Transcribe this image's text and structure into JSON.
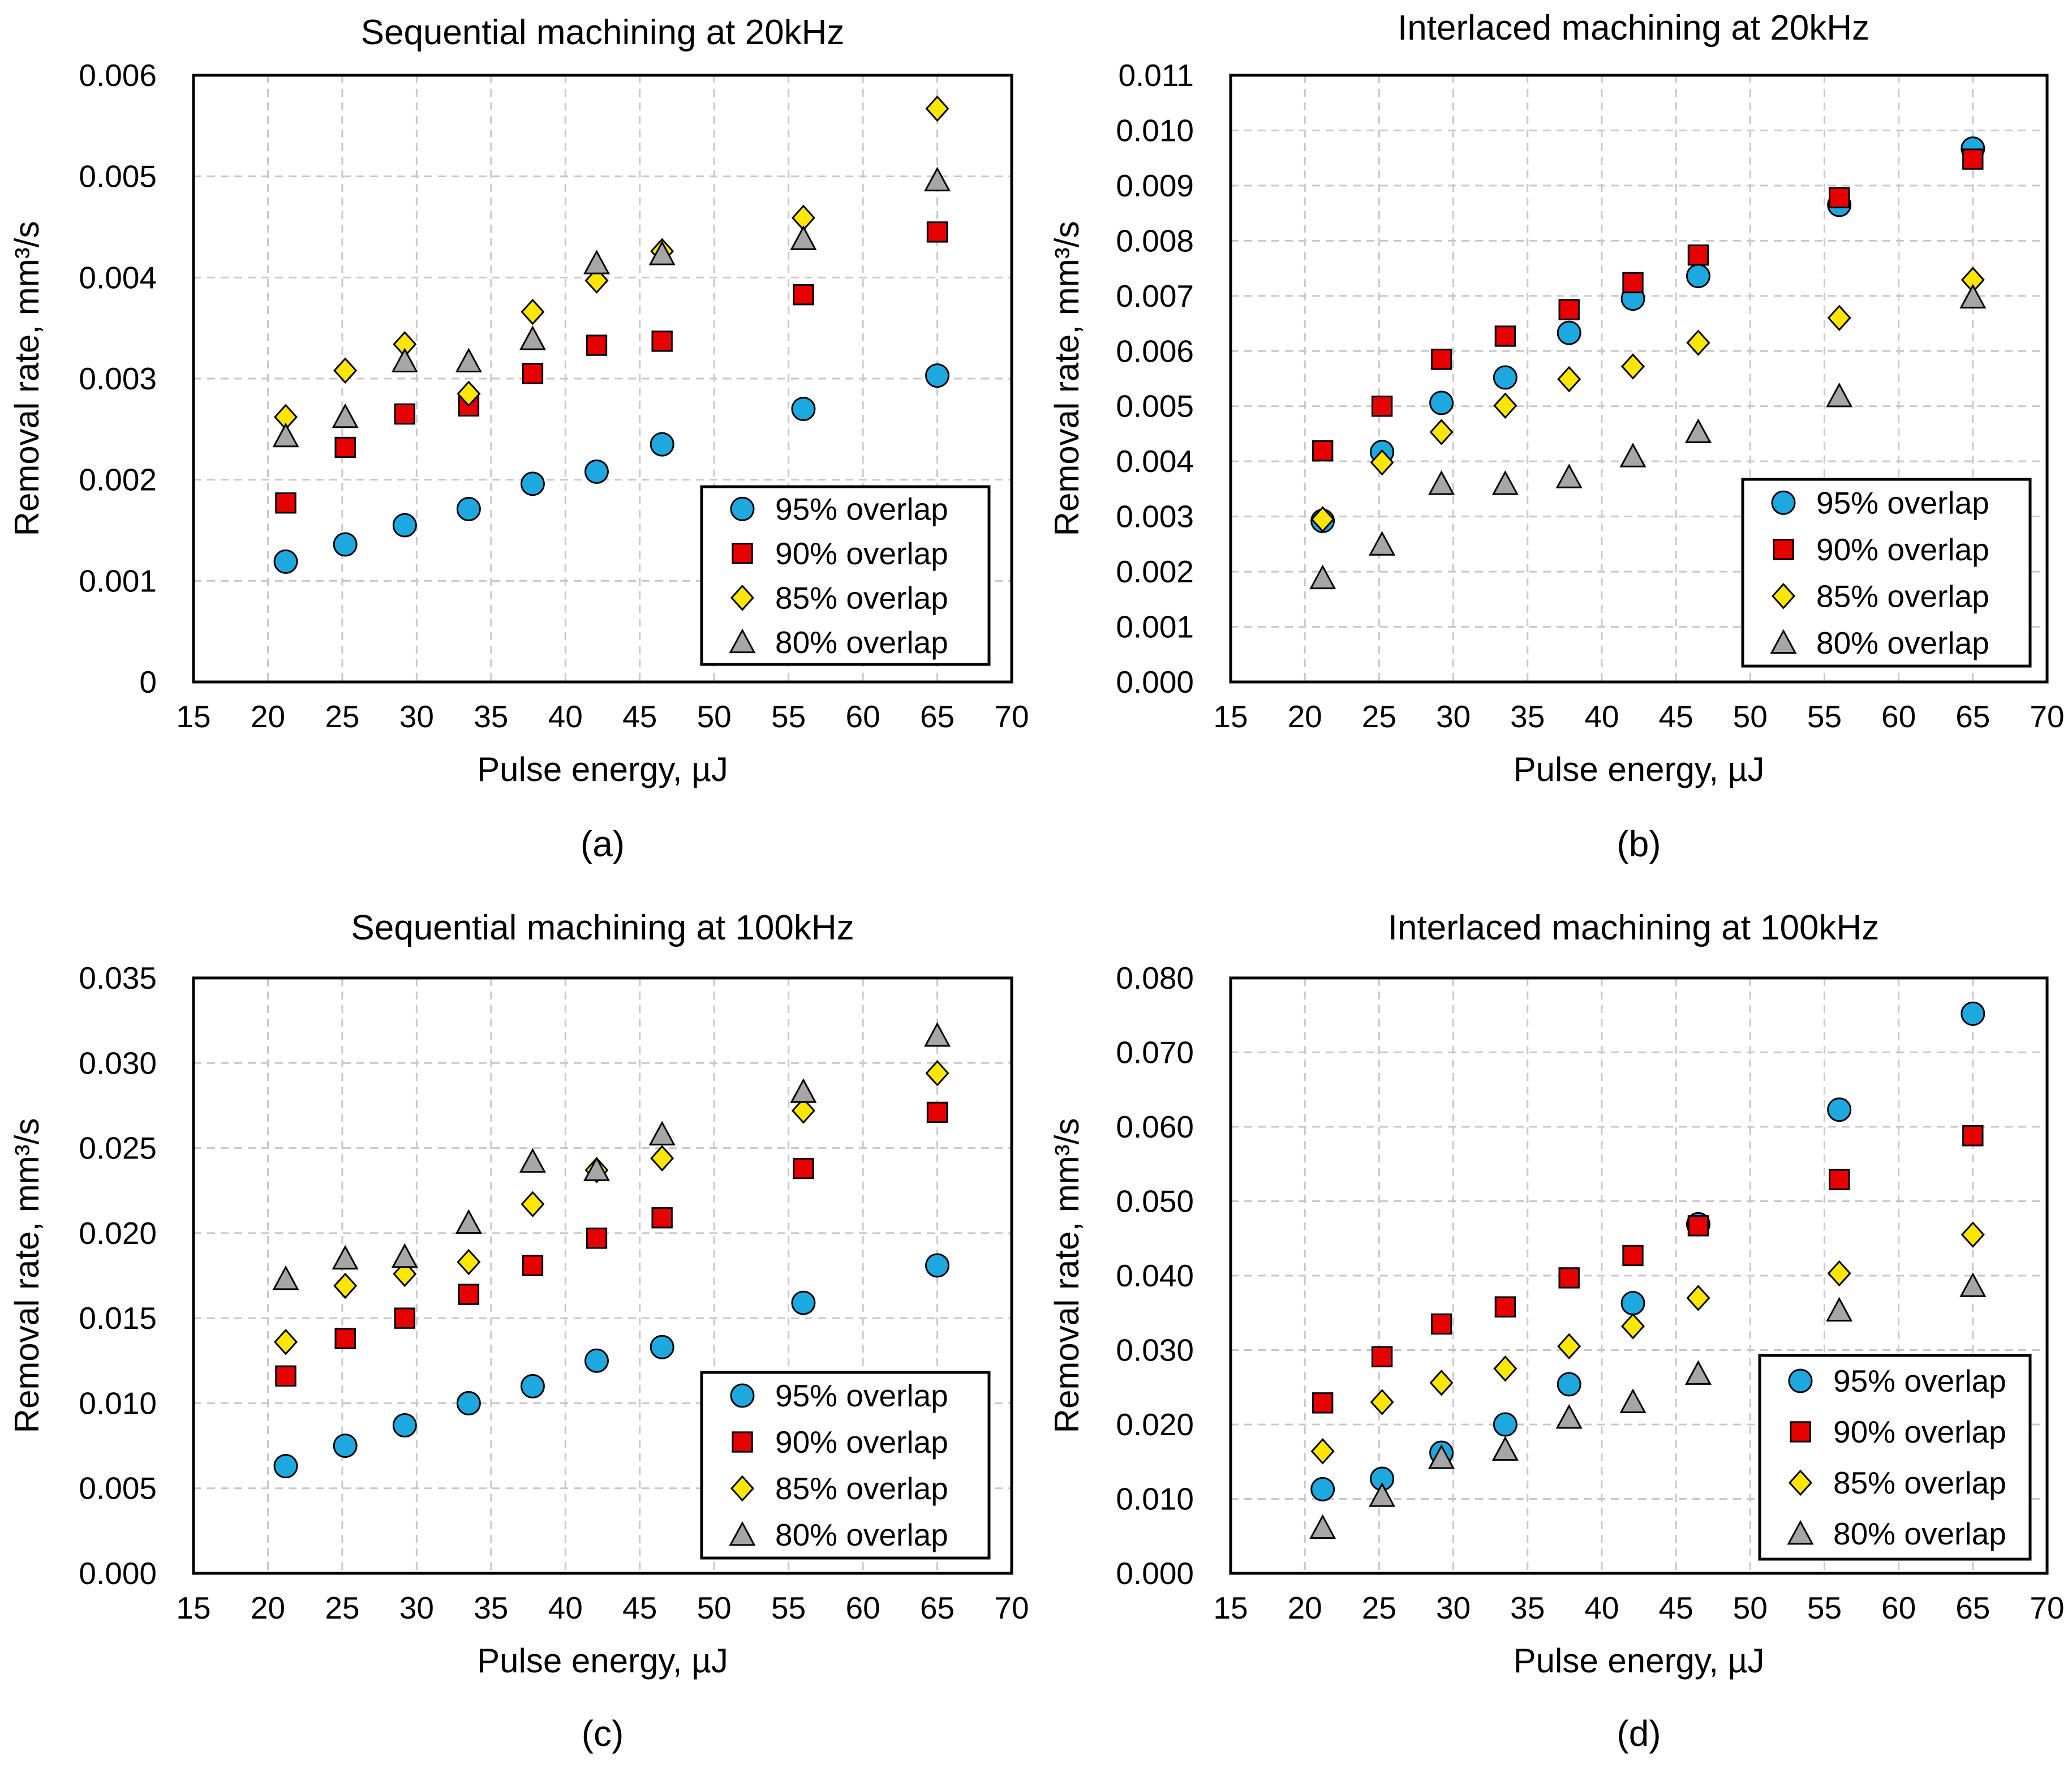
{
  "series_styles": [
    {
      "name": "95% overlap",
      "marker": "circle",
      "color": "#1ea8e0"
    },
    {
      "name": "90% overlap",
      "marker": "square",
      "color": "#e60000"
    },
    {
      "name": "85% overlap",
      "marker": "diamond",
      "color": "#ffe600"
    },
    {
      "name": "80% overlap",
      "marker": "triangle",
      "color": "#a6a6a6"
    }
  ],
  "chart_data": [
    {
      "type": "scatter",
      "caption": "(a)",
      "title": "Sequential machining at 20kHz",
      "xlabel": "Pulse energy, µJ",
      "ylabel": "Removal rate, mm³/s",
      "xlim": [
        15,
        70
      ],
      "xticks": [
        "15",
        "20",
        "25",
        "30",
        "35",
        "40",
        "45",
        "50",
        "55",
        "60",
        "65",
        "70"
      ],
      "ylim": [
        0,
        0.006
      ],
      "yticks": [
        "0",
        "0.001",
        "0.002",
        "0.003",
        "0.004",
        "0.005",
        "0.006"
      ],
      "grid": true,
      "legend_position": "bottom-right",
      "x": [
        21.2,
        25.2,
        29.2,
        33.5,
        37.8,
        42.1,
        46.5,
        56,
        65
      ],
      "series": [
        {
          "name": "95% overlap",
          "values": [
            0.00119,
            0.00136,
            0.00155,
            0.00171,
            0.00196,
            0.00208,
            0.00235,
            0.0027,
            0.00303
          ]
        },
        {
          "name": "90% overlap",
          "values": [
            0.00177,
            0.00232,
            0.00265,
            0.00273,
            0.00305,
            0.00333,
            0.00337,
            0.00383,
            0.00445
          ]
        },
        {
          "name": "85% overlap",
          "values": [
            0.00262,
            0.00308,
            0.00334,
            0.00285,
            0.00366,
            0.00397,
            0.00426,
            0.00459,
            0.00567
          ]
        },
        {
          "name": "80% overlap",
          "values": [
            0.00243,
            0.00262,
            0.00317,
            0.00317,
            0.00339,
            0.00414,
            0.00423,
            0.00438,
            0.00496
          ]
        }
      ]
    },
    {
      "type": "scatter",
      "caption": "(b)",
      "title": "Interlaced machining at 20kHz",
      "xlabel": "Pulse energy, µJ",
      "ylabel": "Removal rate, mm³/s",
      "xlim": [
        15,
        70
      ],
      "xticks": [
        "15",
        "20",
        "25",
        "30",
        "35",
        "40",
        "45",
        "50",
        "55",
        "60",
        "65",
        "70"
      ],
      "ylim": [
        0,
        0.011
      ],
      "yticks": [
        "0.000",
        "0.001",
        "0.002",
        "0.003",
        "0.004",
        "0.005",
        "0.006",
        "0.007",
        "0.008",
        "0.009",
        "0.010",
        "0.011"
      ],
      "grid": true,
      "legend_position": "bottom-right",
      "x": [
        21.2,
        25.2,
        29.2,
        33.5,
        37.8,
        42.1,
        46.5,
        56,
        65
      ],
      "series": [
        {
          "name": "95% overlap",
          "values": [
            0.00292,
            0.00417,
            0.00506,
            0.00552,
            0.00633,
            0.00695,
            0.00736,
            0.00865,
            0.00967
          ]
        },
        {
          "name": "90% overlap",
          "values": [
            0.00419,
            0.005,
            0.00585,
            0.00627,
            0.00675,
            0.00724,
            0.00774,
            0.00878,
            0.00948
          ]
        },
        {
          "name": "85% overlap",
          "values": [
            0.00295,
            0.00398,
            0.00453,
            0.00501,
            0.00549,
            0.00572,
            0.00615,
            0.0066,
            0.00729
          ]
        },
        {
          "name": "80% overlap",
          "values": [
            0.00188,
            0.00249,
            0.00359,
            0.00359,
            0.00371,
            0.00409,
            0.00453,
            0.00518,
            0.00697
          ]
        }
      ]
    },
    {
      "type": "scatter",
      "caption": "(c)",
      "title": "Sequential machining at 100kHz",
      "xlabel": "Pulse energy, µJ",
      "ylabel": "Removal rate, mm³/s",
      "xlim": [
        15,
        70
      ],
      "xticks": [
        "15",
        "20",
        "25",
        "30",
        "35",
        "40",
        "45",
        "50",
        "55",
        "60",
        "65",
        "70"
      ],
      "ylim": [
        0,
        0.035
      ],
      "yticks": [
        "0.000",
        "0.005",
        "0.010",
        "0.015",
        "0.020",
        "0.025",
        "0.030",
        "0.035"
      ],
      "grid": true,
      "legend_position": "bottom-right",
      "x": [
        21.2,
        25.2,
        29.2,
        33.5,
        37.8,
        42.1,
        46.5,
        56,
        65
      ],
      "series": [
        {
          "name": "95% overlap",
          "values": [
            0.0063,
            0.0075,
            0.0087,
            0.01,
            0.011,
            0.0125,
            0.0133,
            0.0159,
            0.0181
          ]
        },
        {
          "name": "90% overlap",
          "values": [
            0.0116,
            0.0138,
            0.015,
            0.0164,
            0.0181,
            0.0197,
            0.0209,
            0.0238,
            0.0271
          ]
        },
        {
          "name": "85% overlap",
          "values": [
            0.0136,
            0.0169,
            0.0176,
            0.0183,
            0.0217,
            0.0237,
            0.0244,
            0.0272,
            0.0294
          ]
        },
        {
          "name": "80% overlap",
          "values": [
            0.0173,
            0.0185,
            0.0186,
            0.0206,
            0.0242,
            0.0237,
            0.0258,
            0.0283,
            0.0316
          ]
        }
      ]
    },
    {
      "type": "scatter",
      "caption": "(d)",
      "title": "Interlaced machining at 100kHz",
      "xlabel": "Pulse energy, µJ",
      "ylabel": "Removal rate, mm³/s",
      "xlim": [
        15,
        70
      ],
      "xticks": [
        "15",
        "20",
        "25",
        "30",
        "35",
        "40",
        "45",
        "50",
        "55",
        "60",
        "65",
        "70"
      ],
      "ylim": [
        0,
        0.08
      ],
      "yticks": [
        "0.000",
        "0.010",
        "0.020",
        "0.030",
        "0.040",
        "0.050",
        "0.060",
        "0.070",
        "0.080"
      ],
      "grid": true,
      "legend_position": "bottom-right",
      "x": [
        21.2,
        25.2,
        29.2,
        33.5,
        37.8,
        42.1,
        46.5,
        56,
        65
      ],
      "series": [
        {
          "name": "95% overlap",
          "values": [
            0.0113,
            0.0127,
            0.0162,
            0.02,
            0.0254,
            0.0363,
            0.0469,
            0.0623,
            0.0752
          ]
        },
        {
          "name": "90% overlap",
          "values": [
            0.0229,
            0.0291,
            0.0335,
            0.0358,
            0.0397,
            0.0427,
            0.0467,
            0.0529,
            0.0588
          ]
        },
        {
          "name": "85% overlap",
          "values": [
            0.0164,
            0.023,
            0.0256,
            0.0275,
            0.0305,
            0.0332,
            0.037,
            0.0403,
            0.0455
          ]
        },
        {
          "name": "80% overlap",
          "values": [
            0.0061,
            0.0104,
            0.0155,
            0.0166,
            0.0209,
            0.023,
            0.0268,
            0.0353,
            0.0386
          ]
        }
      ]
    }
  ]
}
